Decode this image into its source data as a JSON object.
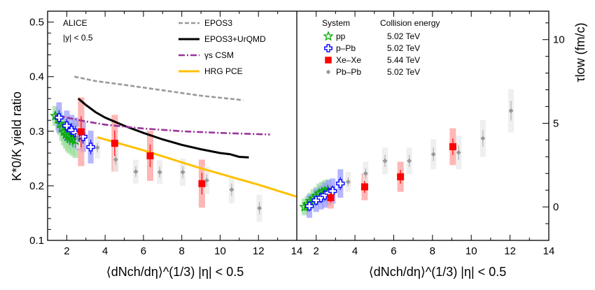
{
  "chart_data": [
    {
      "type": "line",
      "panel": "left",
      "annotation": [
        "ALICE",
        "|y| < 0.5"
      ],
      "ylabel": "K*0/K yield ratio",
      "xlabel": "⟨dNch/dη⟩^(1/3) |η| < 0.5",
      "xlim": [
        1,
        14
      ],
      "ylim": [
        0.1,
        0.52
      ],
      "xticks": [
        "2",
        "4",
        "6",
        "8",
        "10",
        "12",
        "14"
      ],
      "yticks": [
        "0.1",
        "0.2",
        "0.3",
        "0.4",
        "0.5"
      ],
      "models": [
        {
          "name": "EPOS3",
          "color": "#999999",
          "style": "dashed",
          "x": [
            2.4,
            3.5,
            5,
            7,
            9,
            11.2
          ],
          "y": [
            0.4,
            0.392,
            0.385,
            0.375,
            0.365,
            0.357
          ]
        },
        {
          "name": "EPOS3+UrQMD",
          "color": "#000000",
          "style": "solid",
          "x": [
            2.6,
            3,
            3.5,
            4,
            5,
            6,
            7,
            8,
            9,
            10,
            10.5,
            11,
            11.5
          ],
          "y": [
            0.36,
            0.348,
            0.335,
            0.325,
            0.31,
            0.297,
            0.285,
            0.275,
            0.267,
            0.26,
            0.258,
            0.253,
            0.252
          ]
        },
        {
          "name": "γs CSM",
          "color": "#993399",
          "style": "dashdot",
          "x": [
            1.4,
            2,
            3,
            4,
            6,
            8,
            10,
            12.6
          ],
          "y": [
            0.33,
            0.325,
            0.318,
            0.312,
            0.305,
            0.3,
            0.297,
            0.294
          ]
        },
        {
          "name": "HRG PCE",
          "color": "#ffc000",
          "style": "solid",
          "x": [
            3.6,
            5,
            6,
            7,
            8,
            9,
            10,
            11,
            12,
            13,
            14
          ],
          "y": [
            0.289,
            0.275,
            0.265,
            0.254,
            0.243,
            0.232,
            0.222,
            0.212,
            0.202,
            0.191,
            0.18
          ]
        }
      ],
      "series": [
        {
          "name": "pp",
          "energy": "5.02 TeV",
          "color": "#00aa00",
          "marker": "star",
          "x": [
            1.4,
            1.55,
            1.65,
            1.75,
            1.85,
            1.95,
            2.05,
            2.15,
            2.3,
            2.45
          ],
          "y": [
            0.328,
            0.322,
            0.314,
            0.306,
            0.299,
            0.294,
            0.29,
            0.287,
            0.285,
            0.283
          ],
          "yerr": [
            0.018,
            0.02,
            0.021,
            0.024,
            0.025,
            0.026,
            0.027,
            0.028,
            0.03,
            0.032
          ]
        },
        {
          "name": "p–Pb",
          "energy": "5.02 TeV",
          "color": "#0000ff",
          "marker": "cross",
          "x": [
            1.6,
            2.0,
            2.25,
            2.45,
            2.65,
            2.85,
            3.25
          ],
          "y": [
            0.325,
            0.31,
            0.302,
            0.297,
            0.293,
            0.29,
            0.271
          ],
          "yerr": [
            0.028,
            0.028,
            0.028,
            0.028,
            0.028,
            0.028,
            0.03
          ]
        },
        {
          "name": "Xe–Xe",
          "energy": "5.44 TeV",
          "color": "#ff0000",
          "marker": "square",
          "x": [
            2.75,
            4.5,
            6.35,
            9.05
          ],
          "y": [
            0.299,
            0.278,
            0.255,
            0.204
          ],
          "yerr": [
            0.063,
            0.052,
            0.046,
            0.044
          ]
        },
        {
          "name": "Pb–Pb",
          "energy": "5.02 TeV",
          "color": "#999999",
          "marker": "diamond",
          "x": [
            2.55,
            3.6,
            4.55,
            5.6,
            6.85,
            8.05,
            9.3,
            10.6,
            12.05
          ],
          "y": [
            0.288,
            0.27,
            0.248,
            0.226,
            0.225,
            0.225,
            0.21,
            0.193,
            0.159
          ],
          "yerr": [
            0.02,
            0.02,
            0.022,
            0.022,
            0.022,
            0.025,
            0.025,
            0.025,
            0.025
          ]
        }
      ]
    },
    {
      "type": "scatter",
      "panel": "right",
      "ylabel": "τlow (fm/c)",
      "xlabel": "⟨dNch/dη⟩^(1/3) |η| < 0.5",
      "xlim": [
        1,
        14
      ],
      "ylim": [
        -2,
        11.7
      ],
      "xticks": [
        "2",
        "4",
        "6",
        "8",
        "10",
        "12",
        "14"
      ],
      "yticks": [
        "0",
        "5",
        "10"
      ],
      "legend_headers": [
        "System",
        "Collision energy"
      ],
      "series": [
        {
          "name": "pp",
          "energy": "5.02 TeV",
          "color": "#00aa00",
          "marker": "star",
          "x": [
            1.4,
            1.55,
            1.7,
            1.85,
            2.0,
            2.15,
            2.3,
            2.45,
            2.6
          ],
          "y": [
            0.0,
            0.15,
            0.35,
            0.5,
            0.65,
            0.8,
            0.9,
            0.95,
            1.0
          ],
          "yerr": [
            0.5,
            0.5,
            0.5,
            0.55,
            0.55,
            0.6,
            0.6,
            0.65,
            0.65
          ]
        },
        {
          "name": "p–Pb",
          "energy": "5.02 TeV",
          "color": "#0000ff",
          "marker": "cross",
          "x": [
            1.65,
            2.0,
            2.25,
            2.45,
            2.65,
            2.85,
            3.25
          ],
          "y": [
            0.05,
            0.4,
            0.55,
            0.7,
            0.85,
            0.95,
            1.4
          ],
          "yerr": [
            0.7,
            0.7,
            0.7,
            0.75,
            0.75,
            0.75,
            0.85
          ]
        },
        {
          "name": "Xe–Xe",
          "energy": "5.44 TeV",
          "color": "#ff0000",
          "marker": "square",
          "x": [
            2.75,
            4.5,
            6.35,
            9.05
          ],
          "y": [
            0.55,
            1.2,
            1.8,
            3.6
          ],
          "yerr": [
            0.65,
            0.8,
            0.9,
            1.1
          ]
        },
        {
          "name": "Pb–Pb",
          "energy": "5.02 TeV",
          "color": "#999999",
          "marker": "diamond",
          "x": [
            3.65,
            4.55,
            5.55,
            6.8,
            8.05,
            9.35,
            10.6,
            12.05
          ],
          "y": [
            1.5,
            2.0,
            2.75,
            2.75,
            3.15,
            3.25,
            4.1,
            5.75
          ],
          "yerr": [
            0.6,
            0.7,
            0.8,
            0.8,
            0.9,
            1.0,
            1.1,
            1.3
          ]
        }
      ]
    }
  ]
}
